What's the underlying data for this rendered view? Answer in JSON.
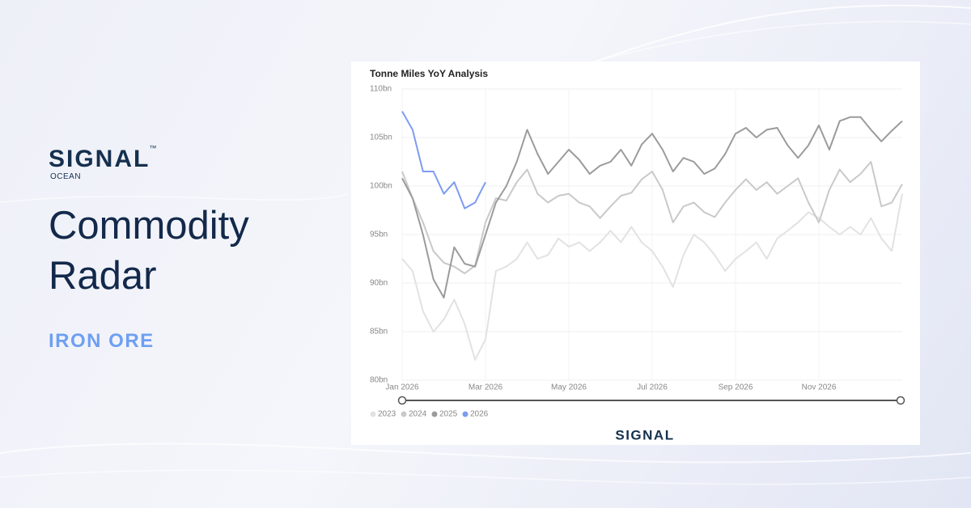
{
  "brand": {
    "name": "SIGNAL",
    "sub": "OCEAN",
    "tm": "™"
  },
  "headline": "Commodity Radar",
  "commodity": "IRON ORE",
  "chart_data": {
    "type": "line",
    "title": "Tonne Miles YoY Analysis",
    "x": [
      0,
      0.25,
      0.5,
      0.75,
      1,
      1.25,
      1.5,
      1.75,
      2,
      2.25,
      2.5,
      2.75,
      3,
      3.25,
      3.5,
      3.75,
      4,
      4.25,
      4.5,
      4.75,
      5,
      5.25,
      5.5,
      5.75,
      6,
      6.25,
      6.5,
      6.75,
      7,
      7.25,
      7.5,
      7.75,
      8,
      8.25,
      8.5,
      8.75,
      9,
      9.25,
      9.5,
      9.75,
      10,
      10.25,
      10.5,
      10.75,
      11,
      11.25,
      11.5,
      11.75,
      12
    ],
    "xlim": [
      0,
      12
    ],
    "xticks": [
      {
        "value": 0,
        "label": "Jan 2026"
      },
      {
        "value": 2,
        "label": "Mar 2026"
      },
      {
        "value": 4,
        "label": "May 2026"
      },
      {
        "value": 6,
        "label": "Jul 2026"
      },
      {
        "value": 8,
        "label": "Sep 2026"
      },
      {
        "value": 10,
        "label": "Nov 2026"
      }
    ],
    "ylim": [
      80,
      110
    ],
    "yticks": [
      {
        "value": 80,
        "label": "80bn"
      },
      {
        "value": 85,
        "label": "85bn"
      },
      {
        "value": 90,
        "label": "90bn"
      },
      {
        "value": 95,
        "label": "95bn"
      },
      {
        "value": 100,
        "label": "100bn"
      },
      {
        "value": 105,
        "label": "105bn"
      },
      {
        "value": 110,
        "label": "110bn"
      }
    ],
    "grid": true,
    "series": [
      {
        "name": "2023",
        "color": "#e2e2e2",
        "values": [
          92.5,
          91.25,
          87.1,
          85,
          86.25,
          88.3,
          85.8,
          82.1,
          84.2,
          91.25,
          91.7,
          92.5,
          94.2,
          92.5,
          92.9,
          94.6,
          93.75,
          94.2,
          93.3,
          94.2,
          95.4,
          94.2,
          95.8,
          94.2,
          93.3,
          91.7,
          89.6,
          92.9,
          95,
          94.2,
          92.9,
          91.25,
          92.5,
          93.3,
          94.2,
          92.5,
          94.6,
          95.4,
          96.25,
          97.3,
          96.7,
          95.8,
          95,
          95.8,
          95,
          96.7,
          94.6,
          93.3,
          99.2
        ]
      },
      {
        "name": "2024",
        "color": "#c9c9c9",
        "values": [
          101.5,
          98.75,
          96.25,
          93.3,
          92.1,
          91.7,
          91,
          91.8,
          96.25,
          98.75,
          98.5,
          100.4,
          101.7,
          99.2,
          98.3,
          99,
          99.2,
          98.3,
          97.9,
          96.7,
          97.9,
          99,
          99.3,
          100.7,
          101.5,
          99.6,
          96.25,
          97.9,
          98.3,
          97.3,
          96.8,
          98.3,
          99.6,
          100.7,
          99.6,
          100.4,
          99.2,
          100,
          100.8,
          98.3,
          96.25,
          99.6,
          101.7,
          100.4,
          101.25,
          102.5,
          97.9,
          98.3,
          100.2
        ]
      },
      {
        "name": "2025",
        "color": "#9b9b9b",
        "values": [
          100.8,
          98.75,
          95,
          90.4,
          88.5,
          93.7,
          92,
          91.7,
          95,
          98.3,
          100,
          102.5,
          105.8,
          103.3,
          101.25,
          102.5,
          103.75,
          102.7,
          101.25,
          102.1,
          102.5,
          103.75,
          102.1,
          104.3,
          105.4,
          103.75,
          101.5,
          102.9,
          102.5,
          101.25,
          101.8,
          103.3,
          105.4,
          106,
          105,
          105.8,
          106,
          104.2,
          102.9,
          104.2,
          106.25,
          103.75,
          106.7,
          107.1,
          107.1,
          105.8,
          104.6,
          105.7,
          106.7
        ]
      },
      {
        "name": "2026",
        "color": "#7c9cf0",
        "values": [
          107.7,
          105.8,
          101.5,
          101.5,
          99.2,
          100.4,
          97.7,
          98.3,
          100.4,
          null,
          null,
          null,
          null,
          null,
          null,
          null,
          null,
          null,
          null,
          null,
          null,
          null,
          null,
          null,
          null,
          null,
          null,
          null,
          null,
          null,
          null,
          null,
          null,
          null,
          null,
          null,
          null,
          null,
          null,
          null,
          null,
          null,
          null,
          null,
          null,
          null,
          null,
          null,
          null
        ]
      }
    ]
  }
}
